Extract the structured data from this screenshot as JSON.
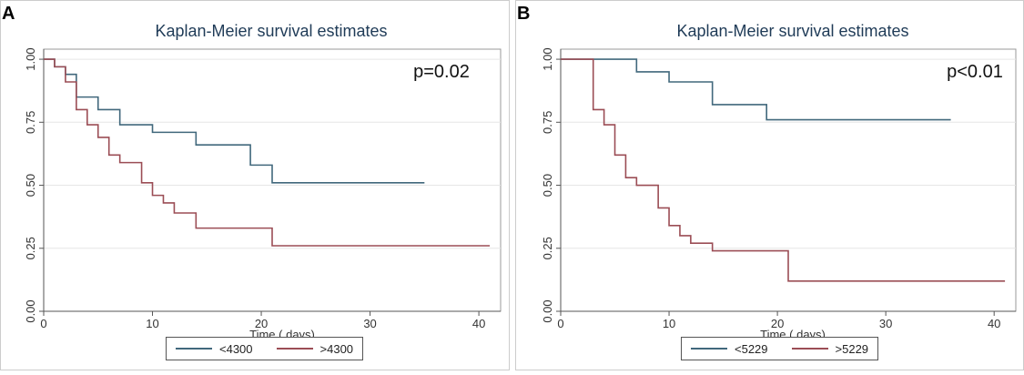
{
  "chart_data": [
    {
      "panel_label": "A",
      "type": "line",
      "title": "Kaplan-Meier survival estimates",
      "xlabel": "Time ( days)",
      "ylabel": "",
      "xlim": [
        0,
        42
      ],
      "ylim": [
        0,
        1.04
      ],
      "x_ticks": [
        0,
        10,
        20,
        30,
        40
      ],
      "y_ticks": [
        0,
        0.25,
        0.5,
        0.75,
        1
      ],
      "x_tick_labels": [
        "0",
        "10",
        "20",
        "30",
        "40"
      ],
      "y_tick_labels": [
        "0.00",
        "0.25",
        "0.50",
        "0.75",
        "1.00"
      ],
      "grid": true,
      "legend_position": "bottom",
      "annotation": "p=0.02",
      "series": [
        {
          "name": "<4300",
          "color": "#41687c",
          "step_x": [
            0,
            1,
            2,
            3,
            5,
            7,
            10,
            14,
            19,
            21,
            35
          ],
          "step_y": [
            1.0,
            0.97,
            0.94,
            0.85,
            0.8,
            0.74,
            0.71,
            0.66,
            0.58,
            0.51,
            0.51
          ]
        },
        {
          "name": ">4300",
          "color": "#9b4d55",
          "step_x": [
            0,
            1,
            2,
            3,
            4,
            5,
            6,
            7,
            9,
            10,
            11,
            12,
            14,
            21,
            41
          ],
          "step_y": [
            1.0,
            0.97,
            0.91,
            0.8,
            0.74,
            0.69,
            0.62,
            0.59,
            0.51,
            0.46,
            0.43,
            0.39,
            0.33,
            0.26,
            0.26
          ]
        }
      ]
    },
    {
      "panel_label": "B",
      "type": "line",
      "title": "Kaplan-Meier survival estimates",
      "xlabel": "Time ( days)",
      "ylabel": "",
      "xlim": [
        0,
        42
      ],
      "ylim": [
        0,
        1.04
      ],
      "x_ticks": [
        0,
        10,
        20,
        30,
        40
      ],
      "y_ticks": [
        0,
        0.25,
        0.5,
        0.75,
        1
      ],
      "x_tick_labels": [
        "0",
        "10",
        "20",
        "30",
        "40"
      ],
      "y_tick_labels": [
        "0.00",
        "0.25",
        "0.50",
        "0.75",
        "1.00"
      ],
      "grid": true,
      "legend_position": "bottom",
      "annotation": "p<0.01",
      "series": [
        {
          "name": "<5229",
          "color": "#41687c",
          "step_x": [
            0,
            7,
            10,
            14,
            19,
            36
          ],
          "step_y": [
            1.0,
            0.95,
            0.91,
            0.82,
            0.76,
            0.76
          ]
        },
        {
          "name": ">5229",
          "color": "#9b4d55",
          "step_x": [
            0,
            3,
            4,
            5,
            6,
            7,
            9,
            10,
            11,
            12,
            14,
            21,
            41
          ],
          "step_y": [
            1.0,
            0.8,
            0.74,
            0.62,
            0.53,
            0.5,
            0.41,
            0.34,
            0.3,
            0.27,
            0.24,
            0.12,
            0.12
          ]
        }
      ]
    }
  ]
}
